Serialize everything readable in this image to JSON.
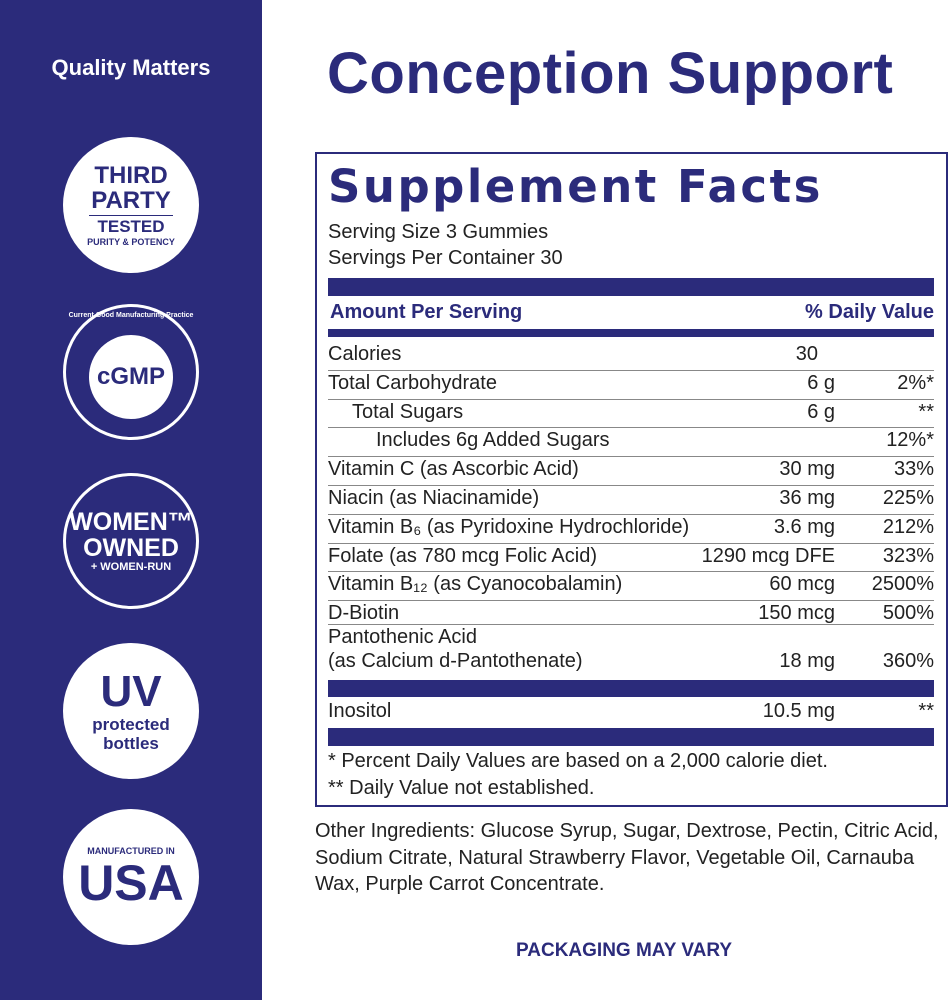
{
  "sidebar": {
    "heading": "Quality Matters",
    "badges": [
      {
        "name": "third-party-tested",
        "lines": [
          "THIRD",
          "PARTY",
          "TESTED",
          "PURITY & POTENCY"
        ]
      },
      {
        "name": "cgmp",
        "lines": [
          "cGMP",
          "Current Good Manufacturing Practice"
        ]
      },
      {
        "name": "women-owned",
        "lines": [
          "WOMEN™",
          "OWNED",
          "+ WOMEN-RUN"
        ]
      },
      {
        "name": "uv-protected",
        "lines": [
          "UV",
          "protected",
          "bottles"
        ]
      },
      {
        "name": "made-in-usa",
        "lines": [
          "MANUFACTURED IN",
          "USA"
        ]
      }
    ]
  },
  "title": "Conception Support",
  "facts": {
    "heading": "Supplement Facts",
    "serving_size": "Serving Size 3 Gummies",
    "servings_per_container": "Servings Per Container 30",
    "amount_header": "Amount Per Serving",
    "dv_header": "% Daily Value",
    "rows": [
      {
        "name": "Calories",
        "amount": "30",
        "dv": "",
        "indent": 0
      },
      {
        "name": "Total Carbohydrate",
        "amount": "6 g",
        "dv": "2%*",
        "indent": 0
      },
      {
        "name": "Total Sugars",
        "amount": "6 g",
        "dv": "**",
        "indent": 1
      },
      {
        "name": "Includes 6g Added Sugars",
        "amount": "",
        "dv": "12%*",
        "indent": 2
      },
      {
        "name": "Vitamin C (as Ascorbic Acid)",
        "amount": "30 mg",
        "dv": "33%",
        "indent": 0
      },
      {
        "name": "Niacin (as Niacinamide)",
        "amount": "36 mg",
        "dv": "225%",
        "indent": 0
      },
      {
        "name": "Vitamin B₆ (as Pyridoxine Hydrochloride)",
        "amount": "3.6 mg",
        "dv": "212%",
        "indent": 0
      },
      {
        "name": "Folate (as 780 mcg Folic Acid)",
        "amount": "1290 mcg DFE",
        "dv": "323%",
        "indent": 0
      },
      {
        "name": "Vitamin B₁₂ (as Cyanocobalamin)",
        "amount": "60 mcg",
        "dv": "2500%",
        "indent": 0
      },
      {
        "name": "D-Biotin",
        "amount": "150 mcg",
        "dv": "500%",
        "indent": 0
      }
    ],
    "pantothenic": {
      "name1": "Pantothenic Acid",
      "name2": "(as Calcium d-Pantothenate)",
      "amount": "18 mg",
      "dv": "360%"
    },
    "inositol": {
      "name": "Inositol",
      "amount": "10.5 mg",
      "dv": "**"
    },
    "footnote1": "* Percent Daily Values are based on a 2,000 calorie diet.",
    "footnote2": "** Daily Value not established."
  },
  "other_ingredients": "Other Ingredients: Glucose Syrup, Sugar, Dextrose, Pectin, Citric Acid, Sodium Citrate, Natural Strawberry Flavor, Vegetable Oil, Carnauba Wax, Purple Carrot Concentrate.",
  "packaging_note": "PACKAGING MAY VARY",
  "colors": {
    "brand_navy": "#2b2b7b"
  }
}
